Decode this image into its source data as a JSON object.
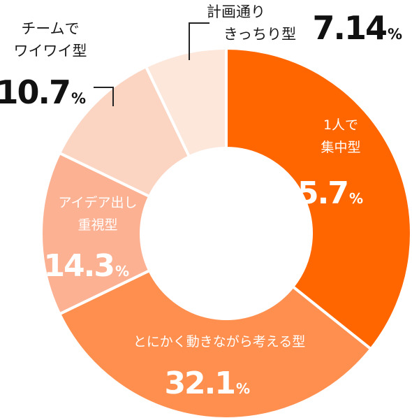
{
  "chart_data": {
    "type": "pie",
    "title": "",
    "categories": [
      "1人で集中型",
      "とにかく動きながら考える型",
      "アイデア出し重視型",
      "チームでワイワイ型",
      "計画通りきっちり型"
    ],
    "values": [
      35.7,
      32.1,
      14.3,
      10.7,
      7.14
    ],
    "unit": "%",
    "value_labels": [
      "35.7",
      "32.1",
      "14.3",
      "10.7",
      "7.14"
    ],
    "label_lines": [
      [
        "1人で",
        "集中型"
      ],
      [
        "とにかく動きながら考える型"
      ],
      [
        "アイデア出し",
        "重視型"
      ],
      [
        "チームで",
        "ワイワイ型"
      ],
      [
        "計画通り",
        "きっちり型"
      ]
    ],
    "colors": [
      "#ff6600",
      "#ff8f4f",
      "#fcb193",
      "#fcd4c2",
      "#fde6da"
    ],
    "donut": true,
    "start": "12 o'clock",
    "direction": "clockwise",
    "legend": "none"
  }
}
